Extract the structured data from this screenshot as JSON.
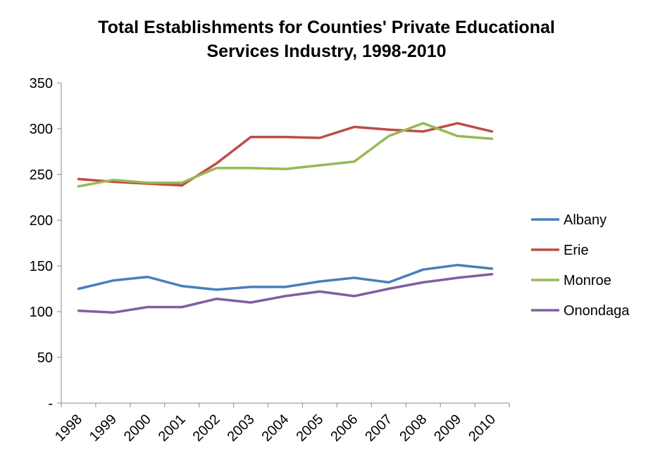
{
  "chart_data": {
    "type": "line",
    "title_line1": "Total Establishments for Counties' Private Educational",
    "title_line2": "Services Industry, 1998-2010",
    "categories": [
      "1998",
      "1999",
      "2000",
      "2001",
      "2002",
      "2003",
      "2004",
      "2005",
      "2006",
      "2007",
      "2008",
      "2009",
      "2010"
    ],
    "y_ticks": [
      "-",
      "50",
      "100",
      "150",
      "200",
      "250",
      "300",
      "350"
    ],
    "ylim": [
      0,
      350
    ],
    "grid": false,
    "legend_position": "right",
    "series": [
      {
        "name": "Albany",
        "color": "#4a7ebb",
        "values": [
          125,
          134,
          138,
          128,
          124,
          127,
          127,
          133,
          137,
          132,
          146,
          151,
          147
        ]
      },
      {
        "name": "Erie",
        "color": "#be4b48",
        "values": [
          245,
          242,
          240,
          238,
          262,
          291,
          291,
          290,
          302,
          299,
          297,
          306,
          297
        ]
      },
      {
        "name": "Monroe",
        "color": "#98b954",
        "values": [
          237,
          244,
          241,
          241,
          257,
          257,
          256,
          260,
          264,
          292,
          306,
          292,
          289
        ]
      },
      {
        "name": "Onondaga",
        "color": "#7d60a0",
        "values": [
          101,
          99,
          105,
          105,
          114,
          110,
          117,
          122,
          117,
          125,
          132,
          137,
          141
        ]
      }
    ]
  }
}
